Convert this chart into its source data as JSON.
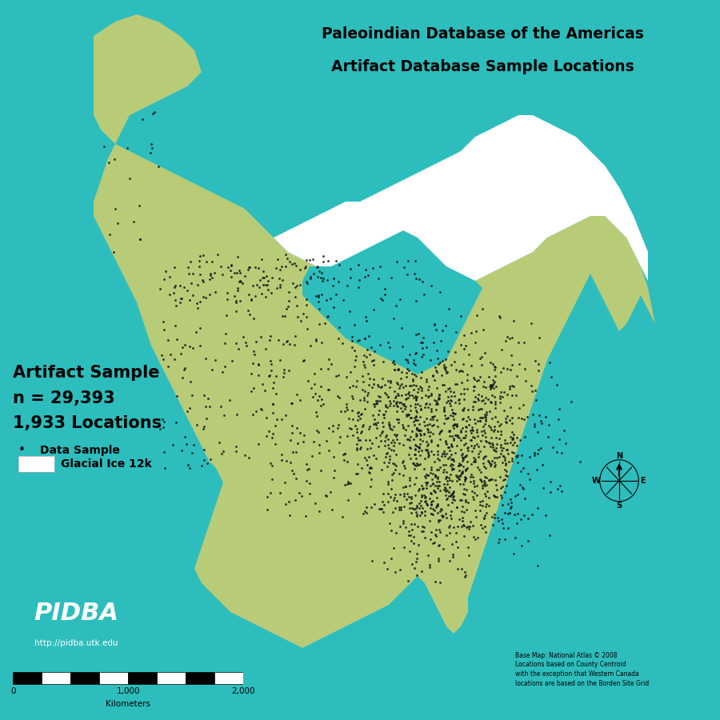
{
  "title_line1": "Paleoindian Database of the Americas",
  "title_line2": "Artifact Database Sample Locations",
  "title_bg_color": "#c8c8c8",
  "title_border_color": "#999999",
  "ocean_color": "#2dbdbd",
  "land_color": "#b8cc78",
  "glacial_color": "#ffffff",
  "dot_color": "#111111",
  "dot_size": 4,
  "stat_color": "#000000",
  "pidba_bg": "#5ab8e8",
  "pidba_text_color": "#ffffff",
  "attribution": "Base Map: National Atlas © 2008\nLocations based on County Centroid\nwith the exception that Western Canada\nlocations are based on the Borden Site Grid"
}
